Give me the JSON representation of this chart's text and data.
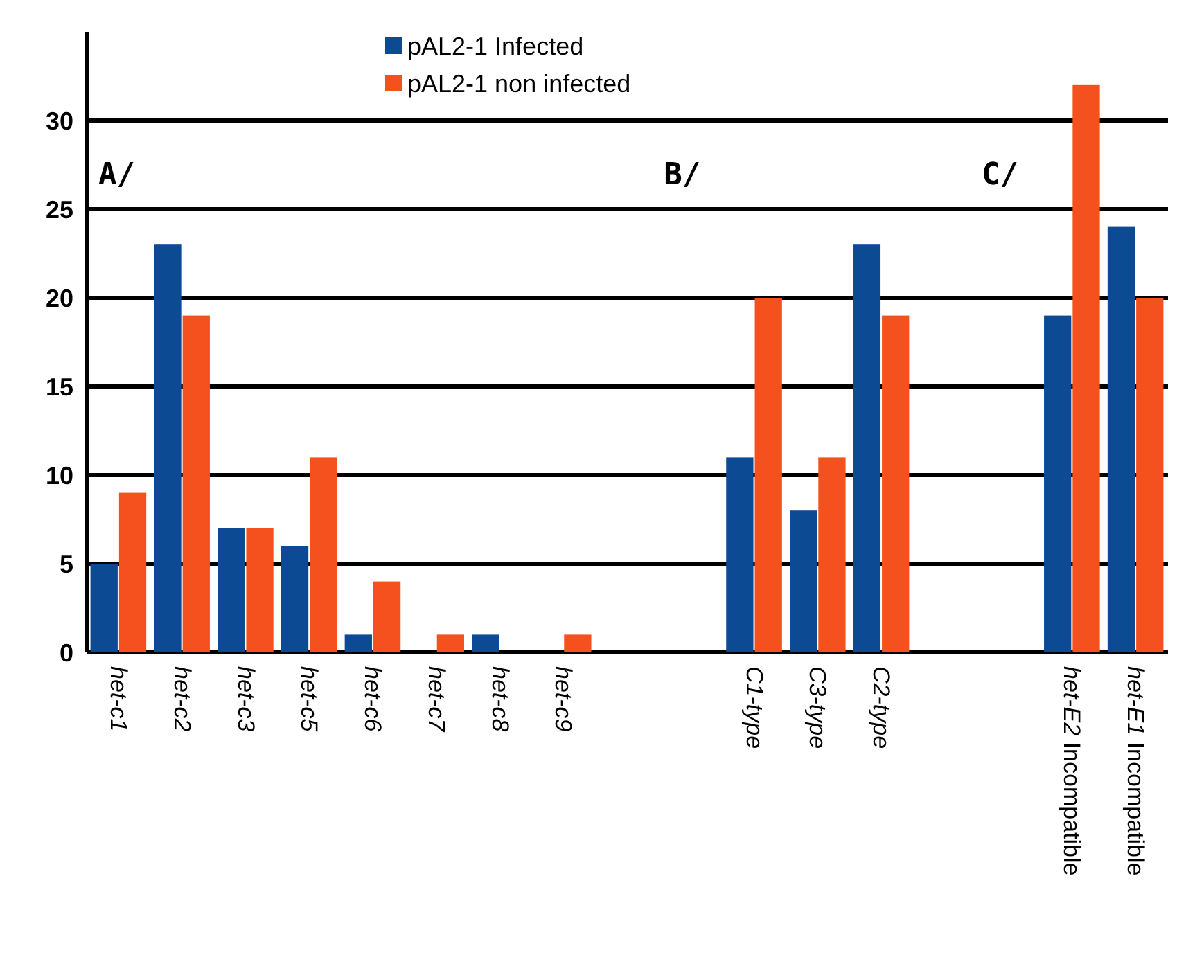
{
  "chart_data": {
    "type": "bar",
    "categories": [
      "het-c1",
      "het-c2",
      "het-c3",
      "het-c5",
      "het-c6",
      "het-c7",
      "het-c8",
      "het-c9",
      null,
      null,
      "C1-type",
      "C3-type",
      "C2-type",
      null,
      null,
      "het-E2 Incompatible",
      "het-E1 Incompatible"
    ],
    "series": [
      {
        "name": "pAL2-1 Infected",
        "color": "#0d4a94",
        "values": [
          5,
          23,
          7,
          6,
          1,
          0,
          1,
          0,
          null,
          null,
          11,
          8,
          23,
          null,
          null,
          19,
          24
        ]
      },
      {
        "name": "pAL2-1 non infected",
        "color": "#f4511e",
        "values": [
          9,
          19,
          7,
          11,
          4,
          1,
          0,
          1,
          null,
          null,
          20,
          11,
          19,
          null,
          null,
          32,
          20
        ]
      }
    ],
    "ylim": [
      0,
      35
    ],
    "yticks": [
      0,
      5,
      10,
      15,
      20,
      25,
      30
    ],
    "grid": "y",
    "legend": "top",
    "annotations": [
      "A/",
      "B/",
      "C/"
    ]
  }
}
